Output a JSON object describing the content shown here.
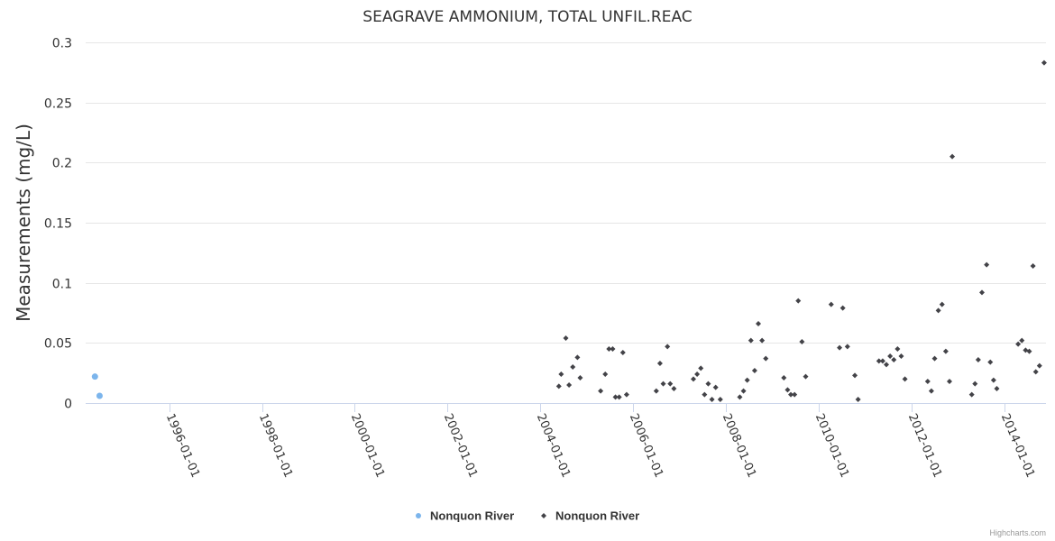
{
  "chart_data": {
    "type": "scatter",
    "title": "SEAGRAVE AMMONIUM, TOTAL UNFIL.REAC",
    "xlabel": "",
    "ylabel": "Measurements (mg/L)",
    "xlim": [
      1994.2,
      2014.9
    ],
    "ylim": [
      0,
      0.3
    ],
    "yticks": [
      0,
      0.05,
      0.1,
      0.15,
      0.2,
      0.25,
      0.3
    ],
    "ytick_labels": [
      "0",
      "0.05",
      "0.1",
      "0.15",
      "0.2",
      "0.25",
      "0.3"
    ],
    "xticks": [
      1996,
      1998,
      2000,
      2002,
      2004,
      2006,
      2008,
      2010,
      2012,
      2014
    ],
    "xtick_labels": [
      "1996-01-01",
      "1998-01-01",
      "2000-01-01",
      "2002-01-01",
      "2004-01-01",
      "2006-01-01",
      "2008-01-01",
      "2010-01-01",
      "2012-01-01",
      "2014-01-01"
    ],
    "grid": true,
    "legend_position": "bottom-center",
    "series": [
      {
        "name": "Nonquon River",
        "color": "#7cb5ec",
        "marker": "circle",
        "points": [
          [
            1994.4,
            0.022
          ],
          [
            1994.5,
            0.006
          ]
        ]
      },
      {
        "name": "Nonquon River",
        "color": "#434348",
        "marker": "diamond",
        "points": [
          [
            2004.4,
            0.014
          ],
          [
            2004.45,
            0.024
          ],
          [
            2004.55,
            0.054
          ],
          [
            2004.62,
            0.015
          ],
          [
            2004.7,
            0.03
          ],
          [
            2004.8,
            0.038
          ],
          [
            2004.86,
            0.021
          ],
          [
            2005.3,
            0.01
          ],
          [
            2005.4,
            0.024
          ],
          [
            2005.48,
            0.045
          ],
          [
            2005.56,
            0.045
          ],
          [
            2005.62,
            0.005
          ],
          [
            2005.7,
            0.005
          ],
          [
            2005.78,
            0.042
          ],
          [
            2005.86,
            0.007
          ],
          [
            2006.5,
            0.01
          ],
          [
            2006.58,
            0.033
          ],
          [
            2006.65,
            0.016
          ],
          [
            2006.74,
            0.047
          ],
          [
            2006.8,
            0.016
          ],
          [
            2006.88,
            0.012
          ],
          [
            2007.3,
            0.02
          ],
          [
            2007.38,
            0.024
          ],
          [
            2007.46,
            0.029
          ],
          [
            2007.54,
            0.007
          ],
          [
            2007.62,
            0.016
          ],
          [
            2007.7,
            0.003
          ],
          [
            2007.78,
            0.013
          ],
          [
            2007.88,
            0.003
          ],
          [
            2008.3,
            0.005
          ],
          [
            2008.38,
            0.01
          ],
          [
            2008.46,
            0.019
          ],
          [
            2008.54,
            0.052
          ],
          [
            2008.62,
            0.027
          ],
          [
            2008.7,
            0.066
          ],
          [
            2008.78,
            0.052
          ],
          [
            2008.86,
            0.037
          ],
          [
            2009.25,
            0.021
          ],
          [
            2009.33,
            0.011
          ],
          [
            2009.4,
            0.007
          ],
          [
            2009.48,
            0.007
          ],
          [
            2009.56,
            0.085
          ],
          [
            2009.64,
            0.051
          ],
          [
            2009.72,
            0.022
          ],
          [
            2010.27,
            0.082
          ],
          [
            2010.45,
            0.046
          ],
          [
            2010.52,
            0.079
          ],
          [
            2010.62,
            0.047
          ],
          [
            2010.78,
            0.023
          ],
          [
            2010.85,
            0.003
          ],
          [
            2011.3,
            0.035
          ],
          [
            2011.38,
            0.035
          ],
          [
            2011.46,
            0.032
          ],
          [
            2011.54,
            0.039
          ],
          [
            2011.62,
            0.036
          ],
          [
            2011.7,
            0.045
          ],
          [
            2011.78,
            0.039
          ],
          [
            2011.86,
            0.02
          ],
          [
            2012.35,
            0.018
          ],
          [
            2012.43,
            0.01
          ],
          [
            2012.5,
            0.037
          ],
          [
            2012.58,
            0.077
          ],
          [
            2012.66,
            0.082
          ],
          [
            2012.74,
            0.043
          ],
          [
            2012.82,
            0.018
          ],
          [
            2012.88,
            0.205
          ],
          [
            2013.3,
            0.007
          ],
          [
            2013.37,
            0.016
          ],
          [
            2013.44,
            0.036
          ],
          [
            2013.52,
            0.092
          ],
          [
            2013.62,
            0.115
          ],
          [
            2013.7,
            0.034
          ],
          [
            2013.77,
            0.019
          ],
          [
            2013.84,
            0.012
          ],
          [
            2014.3,
            0.049
          ],
          [
            2014.38,
            0.052
          ],
          [
            2014.46,
            0.044
          ],
          [
            2014.54,
            0.043
          ],
          [
            2014.62,
            0.114
          ],
          [
            2014.68,
            0.026
          ],
          [
            2014.76,
            0.031
          ],
          [
            2014.86,
            0.283
          ]
        ]
      }
    ]
  },
  "credits": "Highcharts.com"
}
